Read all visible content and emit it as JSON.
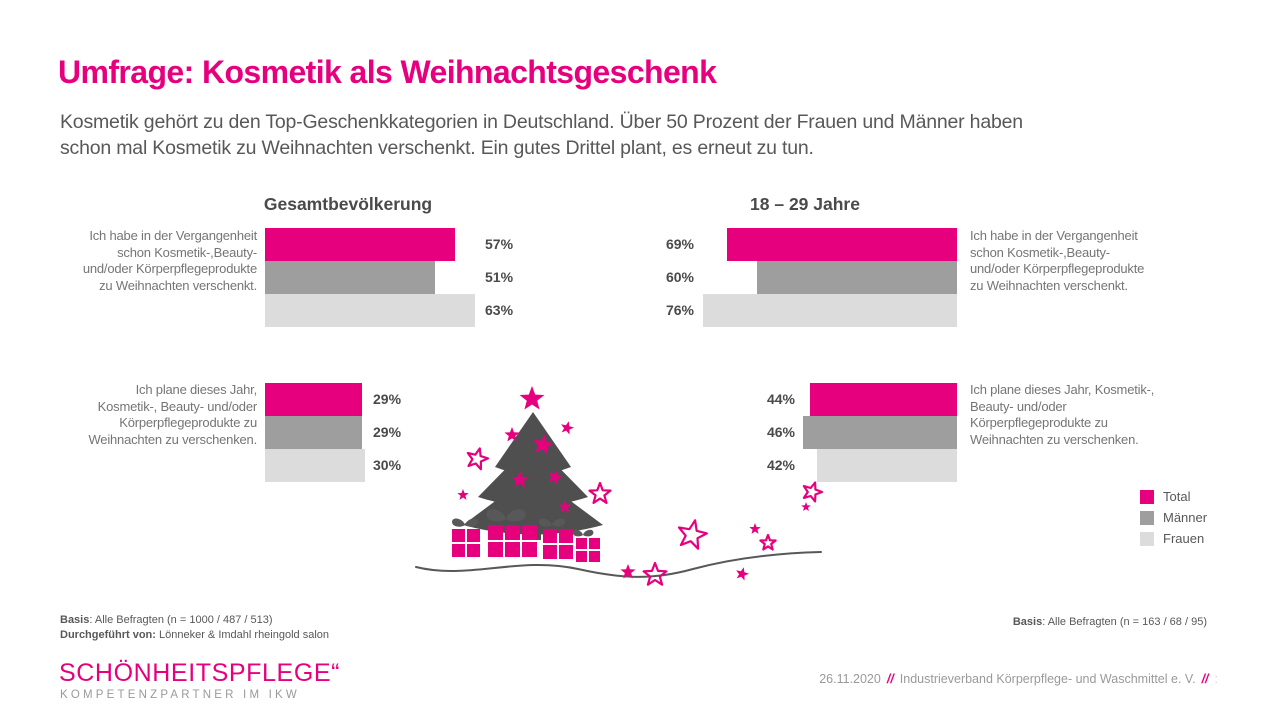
{
  "title": "Umfrage: Kosmetik als Weihnachtsgeschenk",
  "subtitle_lines": [
    "Kosmetik gehört zu den Top-Geschenkkategorien in Deutschland. Über 50 Prozent der Frauen und Männer haben",
    "schon mal Kosmetik zu Weihnachten verschenkt. Ein gutes Drittel plant, es erneut zu tun."
  ],
  "colors": {
    "accent": "#e6007e",
    "series": {
      "Total": "#e6007e",
      "Männer": "#9e9e9e",
      "Frauen": "#dcdcdc"
    },
    "tree": "#4f4f4f",
    "decor": "#58585a"
  },
  "legend": [
    {
      "label": "Total",
      "color": "#e6007e"
    },
    {
      "label": "Männer",
      "color": "#9e9e9e"
    },
    {
      "label": "Frauen",
      "color": "#dcdcdc"
    }
  ],
  "chart_data": [
    {
      "type": "bar",
      "orientation": "horizontal",
      "group": "Gesamtbevölkerung",
      "series_order": [
        "Total",
        "Männer",
        "Frauen"
      ],
      "unit": "%",
      "xlim": [
        0,
        100
      ],
      "questions": [
        {
          "label": "Ich habe in der Vergangenheit schon Kosmetik-,Beauty- und/oder Körperpflegeprodukte zu Weihnachten verschenkt.",
          "values": [
            57,
            51,
            63
          ]
        },
        {
          "label": "Ich plane dieses Jahr, Kosmetik-, Beauty- und/oder Körperpflegeprodukte zu Weihnachten zu verschenken.",
          "values": [
            29,
            29,
            30
          ]
        }
      ]
    },
    {
      "type": "bar",
      "orientation": "horizontal",
      "group": "18 – 29 Jahre",
      "series_order": [
        "Total",
        "Männer",
        "Frauen"
      ],
      "unit": "%",
      "xlim": [
        0,
        100
      ],
      "questions": [
        {
          "label": "Ich habe in der Vergangenheit schon Kosmetik-,Beauty- und/oder Körperpflegeprodukte zu Weihnachten verschenkt.",
          "values": [
            69,
            60,
            76
          ]
        },
        {
          "label": "Ich plane dieses Jahr, Kosmetik-, Beauty- und/oder Körperpflegeprodukte zu Weihnachten zu verschenken.",
          "values": [
            44,
            46,
            42
          ]
        }
      ]
    }
  ],
  "footnotes": {
    "left_line1_label": "Basis",
    "left_line1_text": ": Alle Befragten (n = 1000 / 487 / 513)",
    "left_line2_label": "Durchgeführt von:",
    "left_line2_text": " Lönneker & Imdahl rheingold salon",
    "right_label": "Basis",
    "right_text": ": Alle Befragten (n = 163 / 68 / 95)"
  },
  "logo": {
    "main": "SCHÖNHEITSPFLEGE“",
    "sub": "KOMPETENZPARTNER IM IKW"
  },
  "footer": {
    "date": "26.11.2020",
    "separator": "//",
    "organization": "Industrieverband Körperpflege- und Waschmittel e. V.",
    "page_marker": ":"
  }
}
